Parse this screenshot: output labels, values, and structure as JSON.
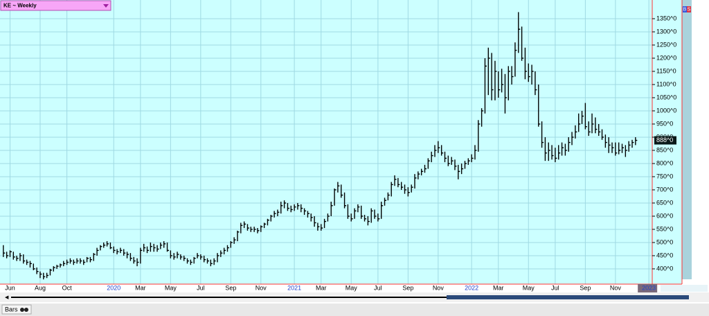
{
  "chart_data": {
    "type": "ohlc",
    "title": "KE ~ Weekly",
    "footer_label": "Bars",
    "side_buttons": [
      "B",
      "S"
    ],
    "color": "#000000",
    "grid": true,
    "xlim": [
      -1,
      194
    ],
    "ylim": [
      342,
      1421
    ],
    "xticks": [
      {
        "value": 2,
        "label": "Jun"
      },
      {
        "value": 11,
        "label": "Aug"
      },
      {
        "value": 19,
        "label": "Oct"
      },
      {
        "value": 33,
        "label": "2020"
      },
      {
        "value": 41,
        "label": "Mar"
      },
      {
        "value": 50,
        "label": "May"
      },
      {
        "value": 59,
        "label": "Jul"
      },
      {
        "value": 68,
        "label": "Sep"
      },
      {
        "value": 77,
        "label": "Nov"
      },
      {
        "value": 87,
        "label": "2021"
      },
      {
        "value": 95,
        "label": "Mar"
      },
      {
        "value": 104,
        "label": "May"
      },
      {
        "value": 112,
        "label": "Jul"
      },
      {
        "value": 121,
        "label": "Sep"
      },
      {
        "value": 130,
        "label": "Nov"
      },
      {
        "value": 140,
        "label": "2022"
      },
      {
        "value": 148,
        "label": "Mar"
      },
      {
        "value": 157,
        "label": "May"
      },
      {
        "value": 165,
        "label": "Jul"
      },
      {
        "value": 174,
        "label": "Sep"
      },
      {
        "value": 183,
        "label": "Nov"
      },
      {
        "value": 193,
        "label": "2023"
      }
    ],
    "yticks": [
      {
        "value": 400,
        "label": "400^0"
      },
      {
        "value": 450,
        "label": "450^0"
      },
      {
        "value": 500,
        "label": "500^0"
      },
      {
        "value": 550,
        "label": "550^0"
      },
      {
        "value": 600,
        "label": "600^0"
      },
      {
        "value": 650,
        "label": "650^0"
      },
      {
        "value": 700,
        "label": "700^0"
      },
      {
        "value": 750,
        "label": "750^0"
      },
      {
        "value": 800,
        "label": "800^0"
      },
      {
        "value": 850,
        "label": "850^0"
      },
      {
        "value": 900,
        "label": "900^0"
      },
      {
        "value": 950,
        "label": "950^0"
      },
      {
        "value": 1000,
        "label": "1000^0"
      },
      {
        "value": 1050,
        "label": "1050^0"
      },
      {
        "value": 1100,
        "label": "1100^0"
      },
      {
        "value": 1150,
        "label": "1150^0"
      },
      {
        "value": 1200,
        "label": "1200^0"
      },
      {
        "value": 1250,
        "label": "1250^0"
      },
      {
        "value": 1300,
        "label": "1300^0"
      },
      {
        "value": 1350,
        "label": "1350^0"
      }
    ],
    "last_price": {
      "value": 888,
      "label": "888^0"
    },
    "high": [
      490,
      465,
      470,
      465,
      450,
      460,
      455,
      435,
      430,
      420,
      405,
      390,
      385,
      385,
      400,
      410,
      415,
      420,
      430,
      435,
      440,
      435,
      440,
      440,
      435,
      445,
      445,
      460,
      480,
      490,
      500,
      505,
      500,
      485,
      475,
      480,
      475,
      465,
      460,
      445,
      440,
      480,
      495,
      485,
      500,
      495,
      490,
      500,
      505,
      500,
      470,
      460,
      465,
      455,
      450,
      440,
      435,
      445,
      460,
      455,
      450,
      440,
      435,
      440,
      460,
      470,
      480,
      490,
      505,
      520,
      545,
      575,
      580,
      570,
      560,
      560,
      555,
      565,
      575,
      590,
      605,
      620,
      625,
      655,
      660,
      650,
      640,
      645,
      650,
      645,
      630,
      620,
      610,
      600,
      575,
      570,
      590,
      610,
      655,
      705,
      730,
      720,
      690,
      645,
      610,
      630,
      645,
      640,
      605,
      600,
      630,
      625,
      610,
      655,
      670,
      690,
      730,
      755,
      745,
      730,
      720,
      710,
      720,
      760,
      770,
      780,
      795,
      820,
      845,
      870,
      885,
      870,
      845,
      830,
      825,
      815,
      795,
      800,
      810,
      820,
      835,
      870,
      965,
      1010,
      1200,
      1240,
      1220,
      1190,
      1150,
      1160,
      1140,
      1170,
      1170,
      1260,
      1375,
      1320,
      1240,
      1180,
      1175,
      1150,
      1100,
      960,
      900,
      880,
      870,
      860,
      870,
      880,
      875,
      900,
      920,
      945,
      990,
      1000,
      1030,
      960,
      990,
      975,
      950,
      930,
      910,
      900,
      880,
      880,
      880,
      875,
      870,
      885,
      890,
      900
    ],
    "low": [
      445,
      440,
      445,
      435,
      430,
      430,
      420,
      415,
      405,
      395,
      380,
      365,
      360,
      365,
      375,
      390,
      400,
      405,
      410,
      415,
      420,
      415,
      420,
      420,
      415,
      425,
      425,
      430,
      450,
      470,
      480,
      485,
      475,
      460,
      455,
      460,
      450,
      440,
      430,
      420,
      410,
      420,
      465,
      460,
      465,
      465,
      465,
      475,
      480,
      465,
      440,
      435,
      440,
      435,
      430,
      420,
      415,
      420,
      440,
      435,
      425,
      420,
      410,
      415,
      425,
      445,
      455,
      465,
      480,
      495,
      505,
      535,
      555,
      545,
      540,
      540,
      535,
      540,
      555,
      565,
      580,
      595,
      600,
      610,
      630,
      620,
      615,
      620,
      625,
      615,
      605,
      595,
      580,
      560,
      545,
      545,
      555,
      580,
      600,
      640,
      690,
      670,
      630,
      590,
      580,
      590,
      615,
      590,
      580,
      565,
      575,
      590,
      580,
      590,
      640,
      660,
      675,
      715,
      710,
      700,
      685,
      675,
      690,
      705,
      740,
      755,
      765,
      780,
      805,
      825,
      840,
      830,
      805,
      790,
      795,
      775,
      740,
      760,
      780,
      795,
      805,
      815,
      845,
      940,
      990,
      1060,
      1040,
      1040,
      1050,
      1070,
      990,
      1040,
      1100,
      1130,
      1220,
      1190,
      1120,
      1110,
      1100,
      1060,
      940,
      860,
      810,
      810,
      815,
      805,
      815,
      830,
      830,
      845,
      870,
      895,
      920,
      950,
      930,
      905,
      915,
      915,
      905,
      890,
      860,
      840,
      840,
      830,
      835,
      840,
      825,
      845,
      860,
      870
    ],
    "close": [
      460,
      450,
      465,
      445,
      440,
      450,
      430,
      425,
      420,
      400,
      390,
      380,
      370,
      375,
      395,
      405,
      410,
      415,
      420,
      425,
      430,
      425,
      430,
      430,
      425,
      440,
      435,
      455,
      470,
      485,
      490,
      495,
      480,
      470,
      465,
      470,
      460,
      455,
      440,
      430,
      425,
      470,
      480,
      470,
      485,
      480,
      475,
      490,
      495,
      470,
      450,
      445,
      455,
      445,
      440,
      430,
      425,
      440,
      450,
      445,
      435,
      430,
      420,
      430,
      450,
      460,
      470,
      480,
      500,
      510,
      540,
      565,
      570,
      555,
      550,
      550,
      545,
      560,
      570,
      585,
      600,
      610,
      615,
      640,
      650,
      630,
      625,
      635,
      640,
      630,
      620,
      610,
      595,
      575,
      560,
      555,
      580,
      600,
      640,
      700,
      715,
      680,
      640,
      600,
      590,
      620,
      635,
      600,
      590,
      580,
      620,
      600,
      590,
      640,
      660,
      680,
      720,
      740,
      720,
      710,
      700,
      690,
      710,
      745,
      760,
      770,
      780,
      810,
      830,
      850,
      860,
      840,
      820,
      800,
      810,
      790,
      770,
      780,
      800,
      810,
      820,
      850,
      950,
      1000,
      1170,
      1200,
      1080,
      1150,
      1080,
      1100,
      1050,
      1150,
      1130,
      1230,
      1310,
      1200,
      1150,
      1130,
      1150,
      1080,
      950,
      880,
      840,
      850,
      830,
      820,
      840,
      860,
      850,
      880,
      900,
      920,
      950,
      980,
      940,
      920,
      950,
      930,
      920,
      900,
      880,
      870,
      860,
      840,
      850,
      860,
      850,
      870,
      880,
      888
    ]
  }
}
